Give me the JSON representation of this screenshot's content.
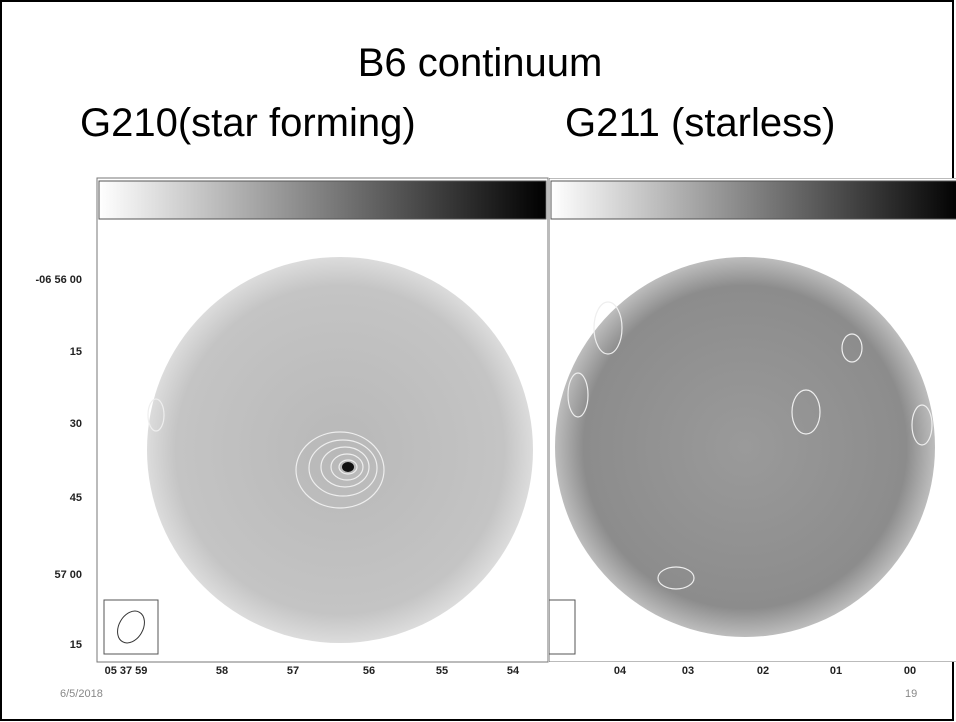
{
  "slide": {
    "title": "B6 continuum",
    "subtitle_left": "G210(star forming)",
    "subtitle_right": "G211 (starless)"
  },
  "panels": [
    {
      "y_labels": [
        "-06 56 00",
        "15",
        "30",
        "45",
        "57 00",
        "15"
      ],
      "x_labels": [
        "05 37 59",
        "58",
        "57",
        "56",
        "55",
        "54"
      ]
    },
    {
      "x_labels": [
        "04",
        "03",
        "02",
        "01",
        "00"
      ]
    }
  ],
  "footer": {
    "date": "6/5/2018",
    "page": "19"
  }
}
